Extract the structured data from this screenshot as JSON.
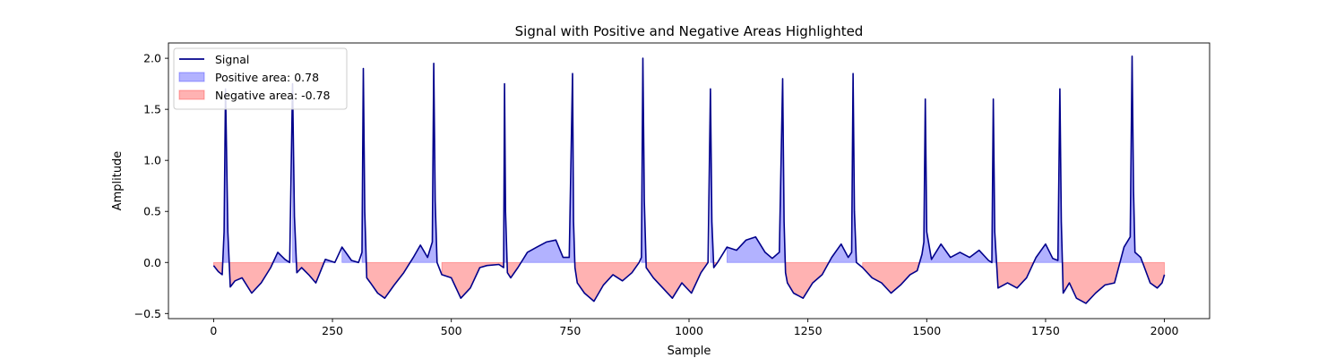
{
  "chart_data": {
    "type": "area",
    "title": "Signal with Positive and Negative Areas Highlighted",
    "xlabel": "Sample",
    "ylabel": "Amplitude",
    "xlim": [
      -95,
      2095
    ],
    "ylim": [
      -0.55,
      2.15
    ],
    "x_ticks": [
      0,
      250,
      500,
      750,
      1000,
      1250,
      1500,
      1750,
      2000
    ],
    "y_ticks": [
      -0.5,
      0.0,
      0.5,
      1.0,
      1.5,
      2.0
    ],
    "grid": false,
    "legend_position": "top-left",
    "series": [
      {
        "name": "Signal",
        "color": "#00008b",
        "x": [
          0,
          10,
          18,
          22,
          25,
          30,
          35,
          45,
          60,
          80,
          100,
          120,
          135,
          150,
          160,
          166,
          170,
          175,
          185,
          200,
          215,
          235,
          255,
          270,
          290,
          305,
          312,
          315,
          318,
          322,
          330,
          345,
          360,
          380,
          400,
          420,
          435,
          450,
          460,
          463,
          466,
          470,
          480,
          500,
          520,
          540,
          560,
          575,
          600,
          610,
          612,
          614,
          618,
          625,
          640,
          660,
          680,
          700,
          720,
          735,
          748,
          755,
          757,
          760,
          765,
          780,
          800,
          820,
          840,
          860,
          880,
          895,
          900,
          903,
          906,
          910,
          925,
          945,
          965,
          985,
          1005,
          1025,
          1040,
          1045,
          1048,
          1052,
          1060,
          1080,
          1100,
          1120,
          1140,
          1160,
          1175,
          1190,
          1197,
          1200,
          1203,
          1207,
          1220,
          1240,
          1260,
          1280,
          1300,
          1320,
          1335,
          1342,
          1345,
          1348,
          1352,
          1365,
          1385,
          1405,
          1425,
          1445,
          1465,
          1480,
          1490,
          1494,
          1497,
          1500,
          1510,
          1530,
          1550,
          1570,
          1590,
          1610,
          1630,
          1637,
          1640,
          1643,
          1650,
          1670,
          1690,
          1710,
          1730,
          1750,
          1765,
          1776,
          1780,
          1783,
          1787,
          1800,
          1815,
          1835,
          1855,
          1875,
          1895,
          1915,
          1928,
          1932,
          1935,
          1938,
          1950,
          1970,
          1985,
          1995,
          2000
        ],
        "y": [
          -0.03,
          -0.09,
          -0.12,
          0.3,
          1.7,
          0.3,
          -0.24,
          -0.18,
          -0.15,
          -0.3,
          -0.2,
          -0.05,
          0.1,
          0.03,
          0.0,
          1.75,
          0.45,
          -0.1,
          -0.05,
          -0.12,
          -0.2,
          0.03,
          0.0,
          0.15,
          0.02,
          0.0,
          0.1,
          1.9,
          0.5,
          -0.15,
          -0.2,
          -0.3,
          -0.35,
          -0.22,
          -0.1,
          0.05,
          0.17,
          0.05,
          0.2,
          1.95,
          0.6,
          0.0,
          -0.12,
          -0.15,
          -0.35,
          -0.25,
          -0.05,
          -0.03,
          -0.02,
          -0.05,
          1.75,
          0.5,
          -0.1,
          -0.15,
          -0.05,
          0.1,
          0.15,
          0.2,
          0.22,
          0.05,
          0.05,
          1.85,
          0.4,
          -0.05,
          -0.2,
          -0.3,
          -0.38,
          -0.22,
          -0.12,
          -0.18,
          -0.1,
          0.0,
          0.05,
          2.0,
          0.6,
          -0.05,
          -0.15,
          -0.25,
          -0.35,
          -0.2,
          -0.3,
          -0.1,
          0.0,
          1.7,
          0.4,
          -0.05,
          0.0,
          0.15,
          0.12,
          0.22,
          0.25,
          0.1,
          0.04,
          0.1,
          1.8,
          0.4,
          -0.1,
          -0.2,
          -0.3,
          -0.35,
          -0.2,
          -0.12,
          0.05,
          0.18,
          0.05,
          0.1,
          1.85,
          0.5,
          0.0,
          -0.05,
          -0.15,
          -0.2,
          -0.3,
          -0.22,
          -0.12,
          -0.08,
          0.08,
          0.2,
          1.6,
          0.3,
          0.03,
          0.18,
          0.05,
          0.1,
          0.05,
          0.12,
          0.02,
          0.0,
          1.6,
          0.3,
          -0.25,
          -0.2,
          -0.25,
          -0.15,
          0.05,
          0.18,
          0.04,
          0.02,
          1.7,
          0.4,
          -0.3,
          -0.2,
          -0.35,
          -0.4,
          -0.3,
          -0.22,
          -0.2,
          0.15,
          0.25,
          2.02,
          0.7,
          0.1,
          0.05,
          -0.2,
          -0.25,
          -0.2,
          -0.12
        ]
      },
      {
        "name": "Positive area: 0.78",
        "color": "#0000ff",
        "fill_opacity": 0.3
      },
      {
        "name": "Negative area: -0.78",
        "color": "#ff0000",
        "fill_opacity": 0.3
      }
    ]
  }
}
